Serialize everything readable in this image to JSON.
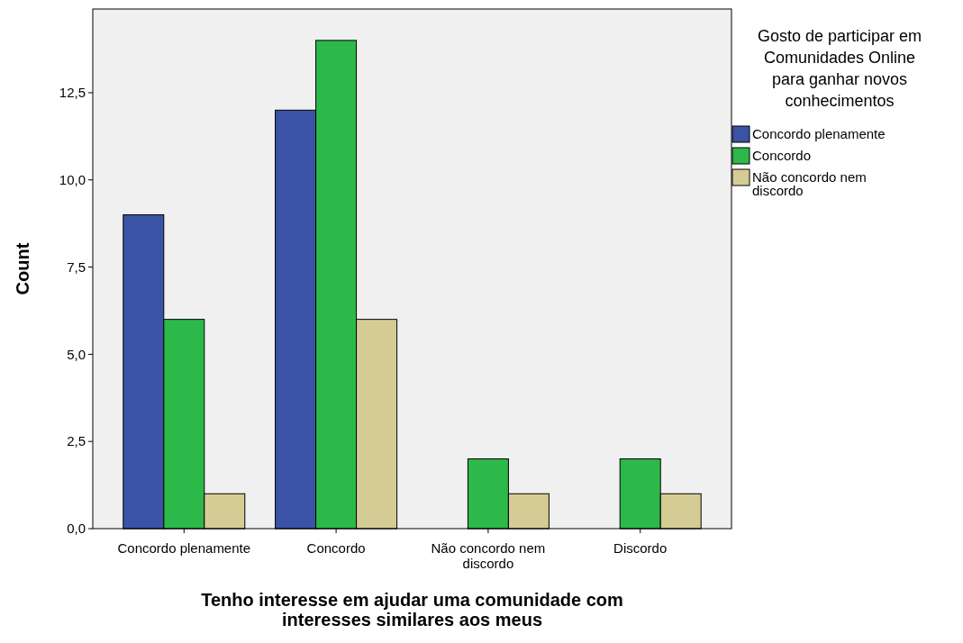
{
  "chart_data": {
    "type": "bar",
    "xlabel": "Tenho interesse em ajudar uma comunidade com interesses similares aos meus",
    "ylabel": "Count",
    "legend_title": "Gosto de participar em Comunidades Online para ganhar novos conhecimentos",
    "categories": [
      "Concordo plenamente",
      "Concordo",
      "Não concordo nem discordo",
      "Discordo"
    ],
    "series": [
      {
        "name": "Concordo plenamente",
        "color": "#3a53a4",
        "values": [
          9,
          12,
          null,
          null
        ]
      },
      {
        "name": "Concordo",
        "color": "#2db84a",
        "values": [
          6,
          14,
          2,
          2
        ]
      },
      {
        "name": "Não concordo nem discordo",
        "color": "#d5cc95",
        "values": [
          1,
          6,
          1,
          1
        ]
      }
    ],
    "ylim": [
      0,
      14.9
    ],
    "yticks": [
      {
        "value": 0,
        "label": "0,0"
      },
      {
        "value": 2.5,
        "label": "2,5"
      },
      {
        "value": 5,
        "label": "5,0"
      },
      {
        "value": 7.5,
        "label": "7,5"
      },
      {
        "value": 10,
        "label": "10,0"
      },
      {
        "value": 12.5,
        "label": "12,5"
      }
    ],
    "grid": false,
    "legend": "top right"
  }
}
